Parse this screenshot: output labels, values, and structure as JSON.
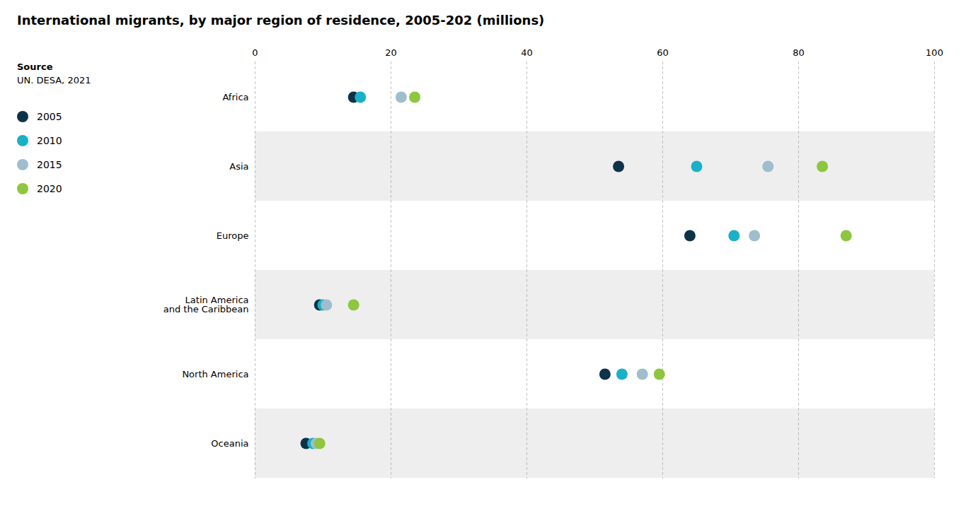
{
  "chart_data": {
    "type": "dot",
    "orientation": "horizontal",
    "title": "International migrants, by major region of residence, 2005-202 (millions)",
    "annotations": [
      "Source",
      "UN. DESA, 2021"
    ],
    "categories": [
      "Africa",
      "Asia",
      "Europe",
      "Latin America\nand the Caribbean",
      "North America",
      "Oceania"
    ],
    "series": [
      {
        "name": "2005",
        "color": "#0d3349",
        "values": [
          14.5,
          53.5,
          64.0,
          9.5,
          51.5,
          7.5
        ]
      },
      {
        "name": "2010",
        "color": "#1ab0c8",
        "values": [
          15.5,
          65.0,
          70.5,
          10.0,
          54.0,
          8.5
        ]
      },
      {
        "name": "2015",
        "color": "#9fbdcc",
        "values": [
          21.5,
          75.5,
          73.5,
          10.5,
          57.0,
          9.0
        ]
      },
      {
        "name": "2020",
        "color": "#8dc63f",
        "values": [
          23.5,
          83.5,
          87.0,
          14.5,
          59.5,
          9.5
        ]
      }
    ],
    "xlim": [
      0,
      100
    ],
    "xticks": [
      0,
      20,
      40,
      60,
      80,
      100
    ],
    "grid": true,
    "legend": "left",
    "marker": "circle"
  }
}
